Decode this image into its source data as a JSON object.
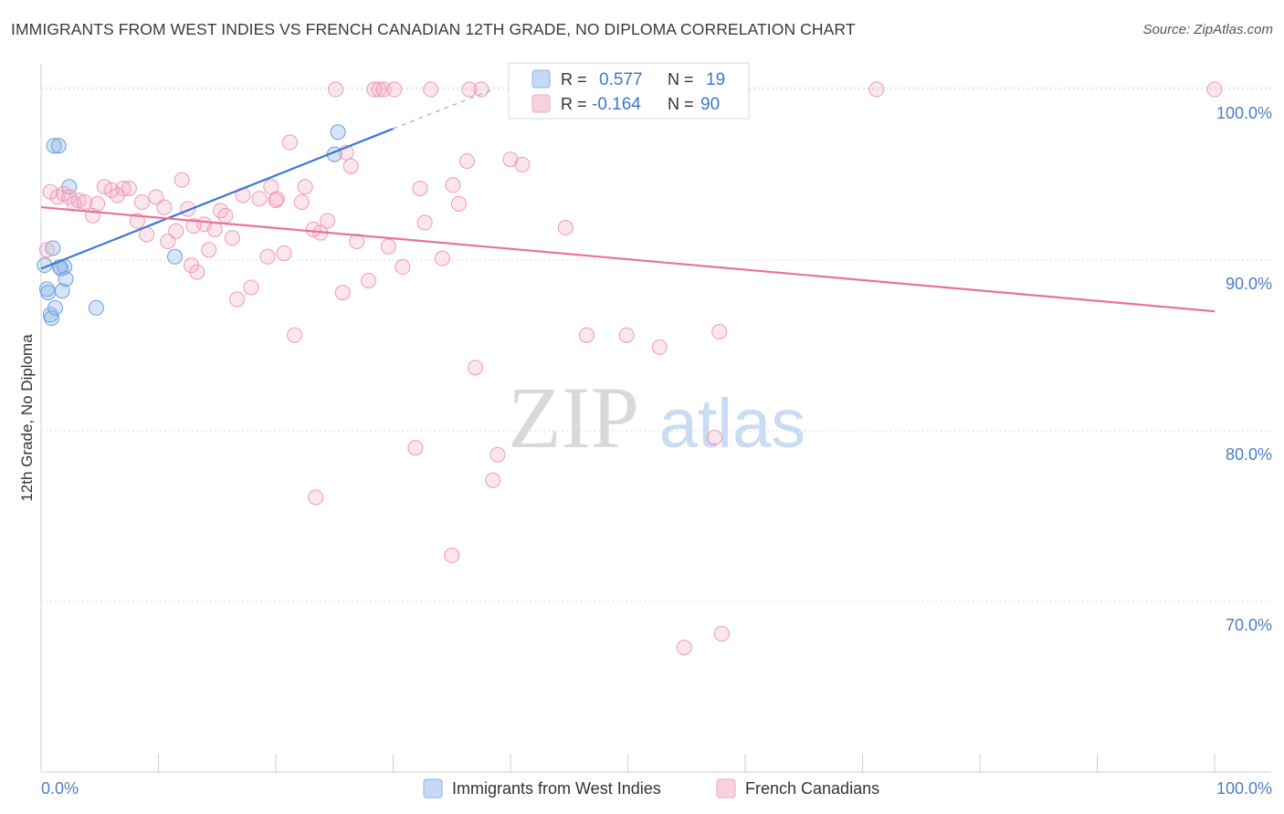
{
  "header": {
    "title": "IMMIGRANTS FROM WEST INDIES VS FRENCH CANADIAN 12TH GRADE, NO DIPLOMA CORRELATION CHART",
    "source": "Source: ZipAtlas.com"
  },
  "watermark": {
    "part1": "ZIP",
    "part2": "atlas"
  },
  "colors": {
    "blue": "#8ab4e8",
    "blue_line": "#3a78d0",
    "pink": "#f4a7bf",
    "pink_line": "#e8729b",
    "axis_label": "#4a7ec9",
    "grid": "#dddddd"
  },
  "stats_legend": [
    {
      "r_label": "R =",
      "r_value": "0.577",
      "n_label": "N =",
      "n_value": "19"
    },
    {
      "r_label": "R =",
      "r_value": "-0.164",
      "n_label": "N =",
      "n_value": "90"
    }
  ],
  "chart_data": {
    "type": "scatter",
    "title": "IMMIGRANTS FROM WEST INDIES VS FRENCH CANADIAN 12TH GRADE, NO DIPLOMA CORRELATION CHART",
    "xlabel": "",
    "ylabel": "12th Grade, No Diploma",
    "xlim": [
      0,
      100
    ],
    "ylim": [
      60,
      101.5
    ],
    "x_tick_labels": [
      "0.0%",
      "100.0%"
    ],
    "y_ticks": [
      70,
      80,
      90,
      100
    ],
    "y_tick_labels": [
      "70.0%",
      "80.0%",
      "90.0%",
      "100.0%"
    ],
    "grid": true,
    "legend_position": "bottom",
    "series": [
      {
        "name": "Immigrants from West Indies",
        "color": "#8ab4e8",
        "points": [
          [
            0.3,
            89.7
          ],
          [
            0.5,
            88.3
          ],
          [
            0.6,
            88.1
          ],
          [
            0.8,
            86.8
          ],
          [
            0.9,
            86.6
          ],
          [
            1.0,
            90.7
          ],
          [
            1.1,
            96.7
          ],
          [
            1.2,
            87.2
          ],
          [
            1.5,
            96.7
          ],
          [
            1.6,
            89.6
          ],
          [
            1.7,
            89.5
          ],
          [
            1.8,
            88.2
          ],
          [
            2.0,
            89.6
          ],
          [
            2.1,
            88.9
          ],
          [
            2.4,
            94.3
          ],
          [
            4.7,
            87.2
          ],
          [
            11.4,
            90.2
          ],
          [
            25.0,
            96.2
          ],
          [
            25.3,
            97.5
          ]
        ],
        "trend": {
          "x": [
            0,
            30
          ],
          "y": [
            89.5,
            97.7
          ],
          "dashed_to": [
            38.5,
            100
          ]
        }
      },
      {
        "name": "French Canadians",
        "color": "#f4a7bf",
        "points": [
          [
            0.5,
            90.6
          ],
          [
            0.8,
            94.0
          ],
          [
            1.4,
            93.7
          ],
          [
            1.9,
            93.9
          ],
          [
            2.4,
            93.7
          ],
          [
            2.8,
            93.3
          ],
          [
            3.2,
            93.5
          ],
          [
            3.7,
            93.4
          ],
          [
            4.4,
            92.6
          ],
          [
            4.8,
            93.3
          ],
          [
            5.4,
            94.3
          ],
          [
            6.0,
            94.1
          ],
          [
            6.5,
            93.8
          ],
          [
            7.0,
            94.2
          ],
          [
            7.5,
            94.2
          ],
          [
            8.2,
            92.3
          ],
          [
            8.6,
            93.4
          ],
          [
            9.0,
            91.5
          ],
          [
            9.8,
            93.7
          ],
          [
            10.5,
            93.1
          ],
          [
            10.8,
            91.1
          ],
          [
            11.5,
            91.7
          ],
          [
            12.0,
            94.7
          ],
          [
            12.5,
            93.0
          ],
          [
            12.8,
            89.7
          ],
          [
            13.3,
            89.3
          ],
          [
            13.9,
            92.1
          ],
          [
            14.3,
            90.6
          ],
          [
            14.8,
            91.8
          ],
          [
            15.3,
            92.9
          ],
          [
            15.7,
            92.6
          ],
          [
            16.3,
            91.3
          ],
          [
            16.7,
            87.7
          ],
          [
            17.2,
            93.8
          ],
          [
            17.9,
            88.4
          ],
          [
            18.6,
            93.6
          ],
          [
            19.3,
            90.2
          ],
          [
            19.6,
            94.3
          ],
          [
            20.1,
            93.6
          ],
          [
            20.7,
            90.4
          ],
          [
            21.2,
            96.9
          ],
          [
            21.6,
            85.6
          ],
          [
            22.2,
            93.4
          ],
          [
            22.5,
            94.3
          ],
          [
            23.2,
            91.8
          ],
          [
            23.8,
            91.6
          ],
          [
            24.4,
            92.3
          ],
          [
            25.1,
            100.0
          ],
          [
            25.7,
            88.1
          ],
          [
            26.0,
            96.3
          ],
          [
            26.4,
            95.5
          ],
          [
            26.9,
            91.1
          ],
          [
            27.9,
            88.8
          ],
          [
            28.4,
            100.0
          ],
          [
            28.8,
            100.0
          ],
          [
            29.2,
            100.0
          ],
          [
            29.6,
            90.8
          ],
          [
            30.1,
            100.0
          ],
          [
            30.8,
            89.6
          ],
          [
            32.3,
            94.2
          ],
          [
            32.7,
            92.2
          ],
          [
            33.2,
            100.0
          ],
          [
            34.2,
            90.1
          ],
          [
            35.1,
            94.4
          ],
          [
            35.6,
            93.3
          ],
          [
            36.3,
            95.8
          ],
          [
            36.5,
            100.0
          ],
          [
            37.0,
            83.7
          ],
          [
            37.5,
            100.0
          ],
          [
            38.5,
            77.1
          ],
          [
            38.9,
            78.6
          ],
          [
            40.0,
            95.9
          ],
          [
            41.0,
            95.6
          ],
          [
            42.3,
            100.0
          ],
          [
            44.7,
            91.9
          ],
          [
            46.5,
            85.6
          ],
          [
            49.9,
            85.6
          ],
          [
            52.7,
            84.9
          ],
          [
            54.8,
            67.3
          ],
          [
            57.4,
            79.6
          ],
          [
            57.8,
            85.8
          ],
          [
            58.0,
            68.1
          ],
          [
            71.2,
            100.0
          ],
          [
            100.0,
            100.0
          ],
          [
            23.4,
            76.1
          ],
          [
            31.9,
            79.0
          ],
          [
            35.0,
            72.7
          ],
          [
            13.0,
            92.0
          ],
          [
            20.0,
            93.5
          ],
          [
            44.0,
            100.0
          ]
        ],
        "trend": {
          "x": [
            0,
            100
          ],
          "y": [
            93.1,
            87.0
          ]
        }
      }
    ]
  },
  "bottom_legend": [
    {
      "label": "Immigrants from West Indies",
      "color": "#c5d9f6",
      "border": "#8ab4e8"
    },
    {
      "label": "French Canadians",
      "color": "#f9d0dd",
      "border": "#f4a7bf"
    }
  ]
}
